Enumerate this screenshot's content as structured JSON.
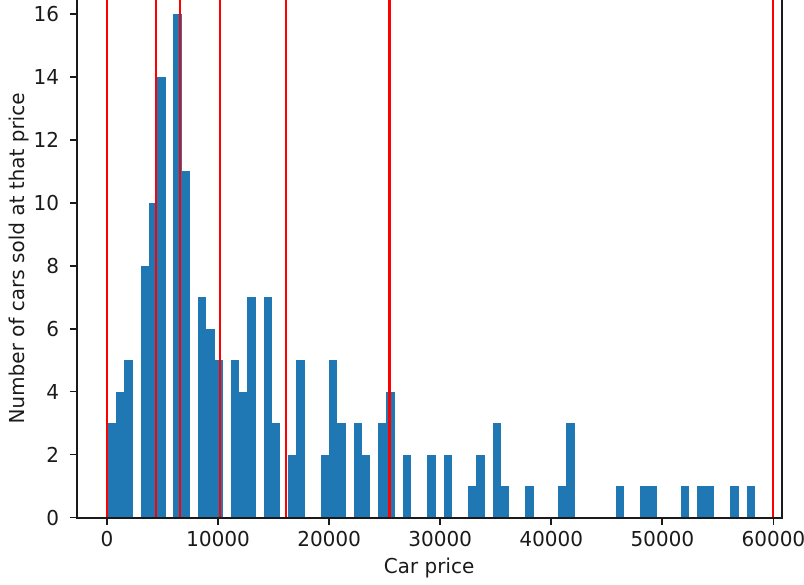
{
  "chart_data": {
    "type": "bar",
    "subtype": "histogram",
    "title": "",
    "xlabel": "Car price",
    "ylabel": "Number of cars sold at that price",
    "x_ticks": [
      0,
      10000,
      20000,
      30000,
      40000,
      50000,
      60000
    ],
    "y_ticks": [
      0,
      2,
      4,
      6,
      8,
      10,
      12,
      14,
      16
    ],
    "xlim": [
      -2690,
      60870
    ],
    "ylim_visible": [
      0,
      16.45
    ],
    "grid": false,
    "legend": "none",
    "bin_start_price": 100,
    "bin_width_price": 737,
    "counts": [
      3,
      4,
      5,
      0,
      8,
      10,
      14,
      0,
      16,
      11,
      0,
      7,
      6,
      5,
      0,
      5,
      4,
      7,
      0,
      7,
      3,
      0,
      2,
      5,
      0,
      0,
      2,
      5,
      3,
      0,
      3,
      2,
      0,
      3,
      4,
      0,
      2,
      0,
      0,
      2,
      0,
      2,
      0,
      0,
      1,
      2,
      0,
      3,
      1,
      0,
      0,
      1,
      0,
      0,
      0,
      1,
      3,
      0,
      0,
      0,
      0,
      0,
      1,
      0,
      0,
      1,
      1,
      0,
      0,
      0,
      1,
      0,
      1,
      1,
      0,
      0,
      1,
      0,
      1
    ],
    "red_line_prices": [
      0,
      4450,
      6550,
      10150,
      16150,
      25450,
      60000
    ],
    "bar_color": "#1f77b4",
    "red_line_color": "#ff0000",
    "axis_color": "#1a1a1a"
  }
}
